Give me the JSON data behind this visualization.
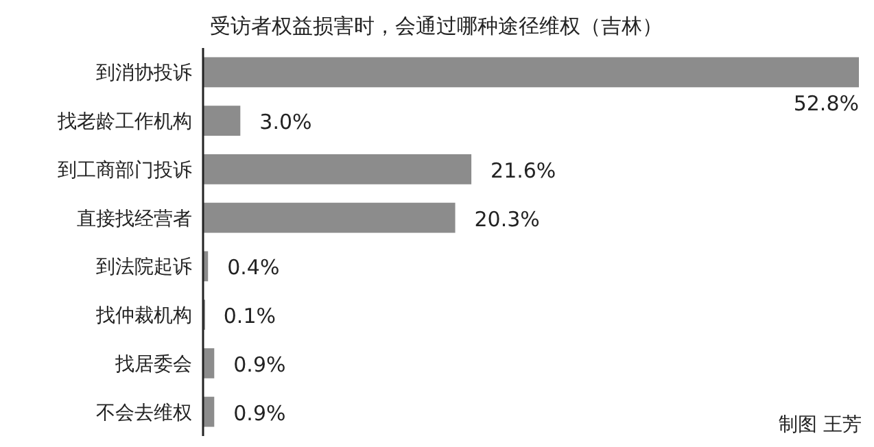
{
  "chart_data": {
    "type": "bar",
    "orientation": "horizontal",
    "title": "受访者权益损害时，会通过哪种途径维权（吉林）",
    "categories": [
      "到消协投诉",
      "找老龄工作机构",
      "到工商部门投诉",
      "直接找经营者",
      "到法院起诉",
      "找仲裁机构",
      "找居委会",
      "不会去维权"
    ],
    "values": [
      52.8,
      3.0,
      21.6,
      20.3,
      0.4,
      0.1,
      0.9,
      0.9
    ],
    "value_labels": [
      "52.8%",
      "3.0%",
      "21.6%",
      "20.3%",
      "0.4%",
      "0.1%",
      "0.9%",
      "0.9%"
    ],
    "color": "#8c8c8c",
    "annotations": [
      "制图  王芳"
    ]
  }
}
